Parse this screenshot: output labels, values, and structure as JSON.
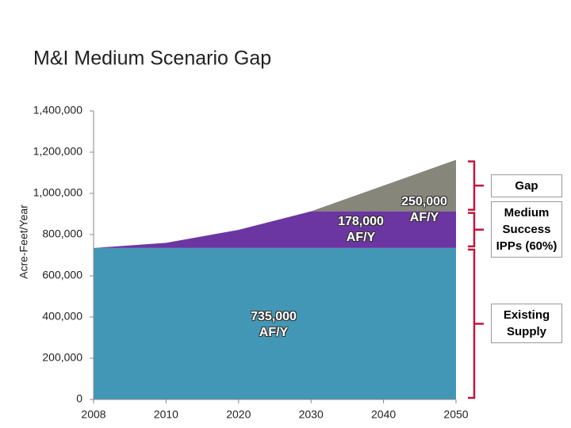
{
  "chart_data": {
    "type": "stacked_area",
    "title": "M&I Medium Scenario Gap",
    "y_label": "Acre-Feet/Year",
    "categories": [
      "2008",
      "2010",
      "2020",
      "2030",
      "2040",
      "2050"
    ],
    "series": [
      {
        "name": "Existing Supply",
        "color": "#4397b6",
        "values": [
          735000,
          735000,
          735000,
          735000,
          735000,
          735000
        ]
      },
      {
        "name": "Medium Success IPPs (60%)",
        "color": "#6b36a1",
        "values": [
          0,
          25000,
          88000,
          178000,
          178000,
          178000
        ]
      },
      {
        "name": "Gap",
        "color": "#86867a",
        "values": [
          0,
          0,
          0,
          0,
          125000,
          250000
        ]
      }
    ],
    "ylim": [
      0,
      1400000
    ],
    "yticks": [
      0,
      {
        "value": 200000,
        "label": "200,000"
      },
      {
        "value": 400000,
        "label": "400,000"
      },
      {
        "value": 600000,
        "label": "600,000"
      },
      {
        "value": 800000,
        "label": "800,000"
      },
      {
        "value": 1000000,
        "label": "1,000,000"
      },
      {
        "value": 1200000,
        "label": "1,200,000"
      },
      {
        "value": 1400000,
        "label": "1,400,000"
      }
    ],
    "annotations": [
      "735,000 AF/Y",
      "178,000 AF/Y",
      "250,000 AF/Y"
    ],
    "bracket_color": "#c0163f"
  }
}
